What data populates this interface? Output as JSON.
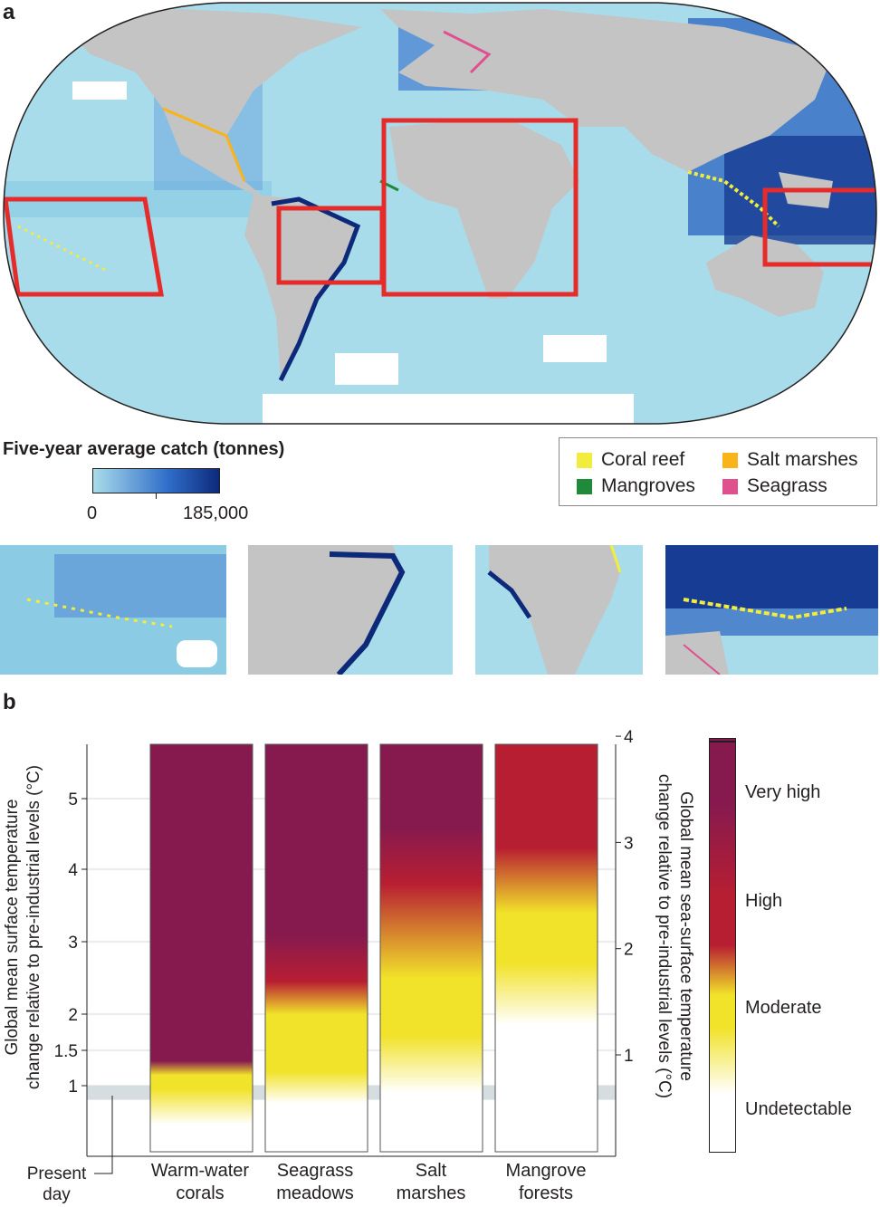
{
  "panel_a": {
    "letter": "a",
    "colorbar": {
      "title": "Five-year average catch (tonnes)",
      "min_label": "0",
      "max_label": "185,000",
      "colors": [
        "#a9dcea",
        "#2f6cc9",
        "#0d2a7a"
      ]
    },
    "habitat_legend": [
      {
        "label": "Coral reef",
        "color": "#f2ec3c"
      },
      {
        "label": "Salt marshes",
        "color": "#f8b418"
      },
      {
        "label": "Mangroves",
        "color": "#1e8a3a"
      },
      {
        "label": "Seagrass",
        "color": "#e0508f"
      }
    ],
    "colors": {
      "ocean": "#a9dcea",
      "land": "#c4c4c4",
      "box": "#e62b2b"
    }
  },
  "panel_b": {
    "letter": "b",
    "left_axis_label_line1": "Global mean surface temperature",
    "left_axis_label_line2": "change relative to pre-industrial levels (°C)",
    "right_axis_label_line1": "Global mean sea-surface temperature",
    "right_axis_label_line2": "change relative to pre-industrial levels (°C)",
    "present_day_line1": "Present",
    "present_day_line2": "day",
    "risk_levels": [
      "Very high",
      "High",
      "Moderate",
      "Undetectable"
    ],
    "risk_colors": {
      "undetectable": "#ffffff",
      "moderate": "#f1e22a",
      "high": "#b81e32",
      "very_high": "#861a4e"
    }
  },
  "chart_data": {
    "type": "heatmap",
    "categories": [
      {
        "line1": "Warm-water",
        "line2": "corals"
      },
      {
        "line1": "Seagrass",
        "line2": "meadows"
      },
      {
        "line1": "Salt",
        "line2": "marshes"
      },
      {
        "line1": "Mangrove",
        "line2": "forests"
      }
    ],
    "left_axis": {
      "ticks": [
        1,
        1.5,
        2,
        3,
        4,
        5
      ],
      "tick_labels": [
        "1",
        "1.5",
        "2",
        "3",
        "4",
        "5"
      ],
      "range": [
        0.2,
        5.75
      ]
    },
    "right_axis": {
      "ticks": [
        1,
        2,
        3,
        4
      ],
      "tick_labels": [
        "1",
        "2",
        "3",
        "4"
      ]
    },
    "present_day_band": [
      0.8,
      1.0
    ],
    "series": [
      {
        "category": "Warm-water corals",
        "stops": [
          {
            "t": 0.45,
            "level": "undetectable"
          },
          {
            "t": 0.95,
            "level": "moderate"
          },
          {
            "t": 1.15,
            "level": "moderate"
          },
          {
            "t": 1.35,
            "level": "very_high"
          },
          {
            "t": 5.75,
            "level": "very_high"
          }
        ]
      },
      {
        "category": "Seagrass meadows",
        "stops": [
          {
            "t": 0.75,
            "level": "undetectable"
          },
          {
            "t": 1.2,
            "level": "moderate"
          },
          {
            "t": 2.0,
            "level": "moderate"
          },
          {
            "t": 2.45,
            "level": "high"
          },
          {
            "t": 3.1,
            "level": "very_high"
          },
          {
            "t": 5.75,
            "level": "very_high"
          }
        ]
      },
      {
        "category": "Salt marshes",
        "stops": [
          {
            "t": 0.9,
            "level": "undetectable"
          },
          {
            "t": 1.7,
            "level": "moderate"
          },
          {
            "t": 2.5,
            "level": "moderate"
          },
          {
            "t": 3.8,
            "level": "high"
          },
          {
            "t": 4.6,
            "level": "very_high"
          },
          {
            "t": 5.75,
            "level": "very_high"
          }
        ]
      },
      {
        "category": "Mangrove forests",
        "stops": [
          {
            "t": 1.85,
            "level": "undetectable"
          },
          {
            "t": 2.7,
            "level": "moderate"
          },
          {
            "t": 3.4,
            "level": "moderate"
          },
          {
            "t": 4.3,
            "level": "high"
          },
          {
            "t": 5.75,
            "level": "high"
          }
        ]
      }
    ]
  }
}
